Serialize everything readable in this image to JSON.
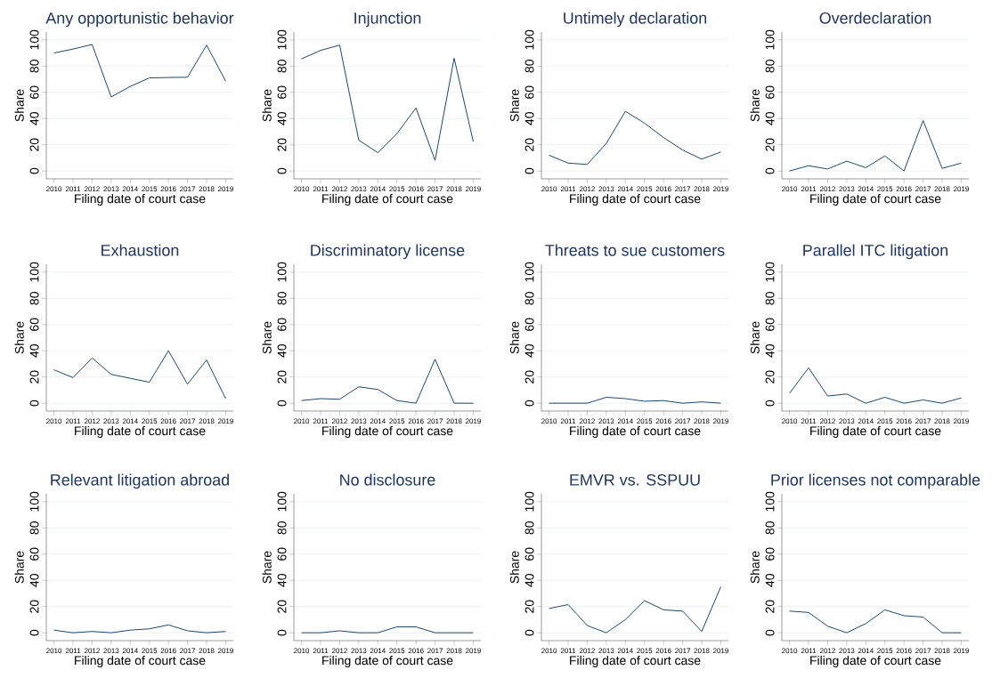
{
  "chart_data": [
    {
      "type": "line",
      "title": "Any opportunistic behavior",
      "xlabel": "Filing date of court case",
      "ylabel": "Share",
      "x": [
        2010,
        2011,
        2012,
        2013,
        2014,
        2015,
        2016,
        2017,
        2018,
        2019
      ],
      "series": [
        {
          "color": "#1a476f",
          "values": [
            90,
            93,
            96.5,
            56.5,
            64.5,
            71,
            71.3,
            71.5,
            96,
            68.5
          ]
        }
      ],
      "xlim": [
        2009.6,
        2019.4
      ],
      "ylim": [
        -6,
        106
      ],
      "xticks": [
        2010,
        2011,
        2012,
        2013,
        2014,
        2015,
        2016,
        2017,
        2018,
        2019
      ],
      "yticks": [
        0,
        20,
        40,
        60,
        80,
        100
      ],
      "grid": "y"
    },
    {
      "type": "line",
      "title": "Injunction",
      "xlabel": "Filing date of court case",
      "ylabel": "Share",
      "x": [
        2010,
        2011,
        2012,
        2013,
        2014,
        2015,
        2016,
        2017,
        2018,
        2019
      ],
      "series": [
        {
          "color": "#1a476f",
          "values": [
            85.5,
            92,
            96,
            23.5,
            14,
            28.5,
            48,
            8,
            86,
            22.5
          ]
        }
      ],
      "xlim": [
        2009.6,
        2019.4
      ],
      "ylim": [
        -6,
        106
      ],
      "xticks": [
        2010,
        2011,
        2012,
        2013,
        2014,
        2015,
        2016,
        2017,
        2018,
        2019
      ],
      "yticks": [
        0,
        20,
        40,
        60,
        80,
        100
      ],
      "grid": "y"
    },
    {
      "type": "line",
      "title": "Untimely declaration",
      "xlabel": "Filing date of court case",
      "ylabel": "Share",
      "x": [
        2010,
        2011,
        2012,
        2013,
        2014,
        2015,
        2016,
        2017,
        2018,
        2019
      ],
      "series": [
        {
          "color": "#1a476f",
          "values": [
            12,
            6,
            5,
            21,
            45.5,
            36.5,
            25.5,
            16,
            9,
            14.5
          ]
        }
      ],
      "xlim": [
        2009.6,
        2019.4
      ],
      "ylim": [
        -6,
        106
      ],
      "xticks": [
        2010,
        2011,
        2012,
        2013,
        2014,
        2015,
        2016,
        2017,
        2018,
        2019
      ],
      "yticks": [
        0,
        20,
        40,
        60,
        80,
        100
      ],
      "grid": "y"
    },
    {
      "type": "line",
      "title": "Overdeclaration",
      "xlabel": "Filing date of court case",
      "ylabel": "Share",
      "x": [
        2010,
        2011,
        2012,
        2013,
        2014,
        2015,
        2016,
        2017,
        2018,
        2019
      ],
      "series": [
        {
          "color": "#1a476f",
          "values": [
            0,
            4,
            1.5,
            7.5,
            2.5,
            11.5,
            0,
            38.5,
            2,
            6
          ]
        }
      ],
      "xlim": [
        2009.6,
        2019.4
      ],
      "ylim": [
        -6,
        106
      ],
      "xticks": [
        2010,
        2011,
        2012,
        2013,
        2014,
        2015,
        2016,
        2017,
        2018,
        2019
      ],
      "yticks": [
        0,
        20,
        40,
        60,
        80,
        100
      ],
      "grid": "y"
    },
    {
      "type": "line",
      "title": "Exhaustion",
      "xlabel": "Filing date of court case",
      "ylabel": "Share",
      "x": [
        2010,
        2011,
        2012,
        2013,
        2014,
        2015,
        2016,
        2017,
        2018,
        2019
      ],
      "series": [
        {
          "color": "#1a476f",
          "values": [
            25.5,
            19.5,
            34.5,
            22,
            19,
            16,
            40,
            14.5,
            33,
            3.5
          ]
        }
      ],
      "xlim": [
        2009.6,
        2019.4
      ],
      "ylim": [
        -6,
        106
      ],
      "xticks": [
        2010,
        2011,
        2012,
        2013,
        2014,
        2015,
        2016,
        2017,
        2018,
        2019
      ],
      "yticks": [
        0,
        20,
        40,
        60,
        80,
        100
      ],
      "grid": "y"
    },
    {
      "type": "line",
      "title": "Discriminatory license",
      "xlabel": "Filing date of court case",
      "ylabel": "Share",
      "x": [
        2010,
        2011,
        2012,
        2013,
        2014,
        2015,
        2016,
        2017,
        2018,
        2019
      ],
      "series": [
        {
          "color": "#1a476f",
          "values": [
            2,
            3.5,
            3,
            12.5,
            10.5,
            2,
            0,
            33.5,
            0,
            0
          ]
        }
      ],
      "xlim": [
        2009.6,
        2019.4
      ],
      "ylim": [
        -6,
        106
      ],
      "xticks": [
        2010,
        2011,
        2012,
        2013,
        2014,
        2015,
        2016,
        2017,
        2018,
        2019
      ],
      "yticks": [
        0,
        20,
        40,
        60,
        80,
        100
      ],
      "grid": "y"
    },
    {
      "type": "line",
      "title": "Threats to sue customers",
      "xlabel": "Filing date of court case",
      "ylabel": "Share",
      "x": [
        2010,
        2011,
        2012,
        2013,
        2014,
        2015,
        2016,
        2017,
        2018,
        2019
      ],
      "series": [
        {
          "color": "#1a476f",
          "values": [
            0,
            0,
            0,
            4.5,
            3.5,
            1.5,
            2,
            0,
            1,
            0
          ]
        }
      ],
      "xlim": [
        2009.6,
        2019.4
      ],
      "ylim": [
        -6,
        106
      ],
      "xticks": [
        2010,
        2011,
        2012,
        2013,
        2014,
        2015,
        2016,
        2017,
        2018,
        2019
      ],
      "yticks": [
        0,
        20,
        40,
        60,
        80,
        100
      ],
      "grid": "y"
    },
    {
      "type": "line",
      "title": "Parallel ITC litigation",
      "xlabel": "Filing date of court case",
      "ylabel": "Share",
      "x": [
        2010,
        2011,
        2012,
        2013,
        2014,
        2015,
        2016,
        2017,
        2018,
        2019
      ],
      "series": [
        {
          "color": "#1a476f",
          "values": [
            7.5,
            27,
            5.5,
            7,
            0,
            4.5,
            0,
            2.5,
            0,
            4
          ]
        }
      ],
      "xlim": [
        2009.6,
        2019.4
      ],
      "ylim": [
        -6,
        106
      ],
      "xticks": [
        2010,
        2011,
        2012,
        2013,
        2014,
        2015,
        2016,
        2017,
        2018,
        2019
      ],
      "yticks": [
        0,
        20,
        40,
        60,
        80,
        100
      ],
      "grid": "y"
    },
    {
      "type": "line",
      "title": "Relevant litigation abroad",
      "xlabel": "Filing date of court case",
      "ylabel": "Share",
      "x": [
        2010,
        2011,
        2012,
        2013,
        2014,
        2015,
        2016,
        2017,
        2018,
        2019
      ],
      "series": [
        {
          "color": "#1a476f",
          "values": [
            2,
            0,
            1,
            0,
            2,
            3,
            6,
            1.5,
            0,
            1
          ]
        }
      ],
      "xlim": [
        2009.6,
        2019.4
      ],
      "ylim": [
        -6,
        106
      ],
      "xticks": [
        2010,
        2011,
        2012,
        2013,
        2014,
        2015,
        2016,
        2017,
        2018,
        2019
      ],
      "yticks": [
        0,
        20,
        40,
        60,
        80,
        100
      ],
      "grid": "y"
    },
    {
      "type": "line",
      "title": "No disclosure",
      "xlabel": "Filing date of court case",
      "ylabel": "Share",
      "x": [
        2010,
        2011,
        2012,
        2013,
        2014,
        2015,
        2016,
        2017,
        2018,
        2019
      ],
      "series": [
        {
          "color": "#1a476f",
          "values": [
            0,
            0,
            1.5,
            0,
            0,
            4.5,
            4.5,
            0,
            0,
            0
          ]
        }
      ],
      "xlim": [
        2009.6,
        2019.4
      ],
      "ylim": [
        -6,
        106
      ],
      "xticks": [
        2010,
        2011,
        2012,
        2013,
        2014,
        2015,
        2016,
        2017,
        2018,
        2019
      ],
      "yticks": [
        0,
        20,
        40,
        60,
        80,
        100
      ],
      "grid": "y"
    },
    {
      "type": "line",
      "title": "EMVR vs. SSPUU",
      "xlabel": "Filing date of court case",
      "ylabel": "Share",
      "x": [
        2010,
        2011,
        2012,
        2013,
        2014,
        2015,
        2016,
        2017,
        2018,
        2019
      ],
      "series": [
        {
          "color": "#1a476f",
          "values": [
            18.5,
            21.5,
            5.5,
            0,
            10,
            24.5,
            17.5,
            16.5,
            1,
            35
          ]
        }
      ],
      "xlim": [
        2009.6,
        2019.4
      ],
      "ylim": [
        -6,
        106
      ],
      "xticks": [
        2010,
        2011,
        2012,
        2013,
        2014,
        2015,
        2016,
        2017,
        2018,
        2019
      ],
      "yticks": [
        0,
        20,
        40,
        60,
        80,
        100
      ],
      "grid": "y"
    },
    {
      "type": "line",
      "title": "Prior licenses not comparable",
      "xlabel": "Filing date of court case",
      "ylabel": "Share",
      "x": [
        2010,
        2011,
        2012,
        2013,
        2014,
        2015,
        2016,
        2017,
        2018,
        2019
      ],
      "series": [
        {
          "color": "#1a476f",
          "values": [
            16.5,
            15.5,
            5,
            0,
            7,
            17.5,
            13,
            12,
            0,
            0
          ]
        }
      ],
      "xlim": [
        2009.6,
        2019.4
      ],
      "ylim": [
        -6,
        106
      ],
      "xticks": [
        2010,
        2011,
        2012,
        2013,
        2014,
        2015,
        2016,
        2017,
        2018,
        2019
      ],
      "yticks": [
        0,
        20,
        40,
        60,
        80,
        100
      ],
      "grid": "y"
    }
  ]
}
